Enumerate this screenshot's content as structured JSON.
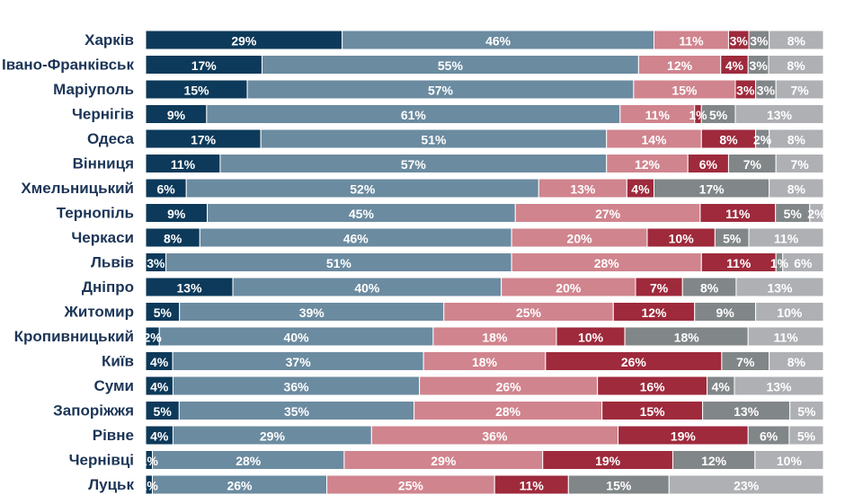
{
  "chart_data": {
    "type": "bar",
    "orientation": "horizontal",
    "stacked": true,
    "percent": true,
    "title": "",
    "xlabel": "",
    "ylabel": "",
    "xlim": [
      0,
      100
    ],
    "grid": false,
    "legend": "none",
    "value_suffix": "%",
    "categories": [
      "Харків",
      "Івано-Франківськ",
      "Маріуполь",
      "Чернігів",
      "Одеса",
      "Вінниця",
      "Хмельницький",
      "Тернопіль",
      "Черкаси",
      "Львів",
      "Дніпро",
      "Житомир",
      "Кропивницький",
      "Київ",
      "Суми",
      "Запоріжжя",
      "Рівне",
      "Чернівці",
      "Луцьк"
    ],
    "series": [
      {
        "name": "Segment 1",
        "color": "#0d3a5a",
        "values": [
          29,
          17,
          15,
          9,
          17,
          11,
          6,
          9,
          8,
          3,
          13,
          5,
          2,
          4,
          4,
          5,
          4,
          1,
          1
        ]
      },
      {
        "name": "Segment 2",
        "color": "#6b8ba0",
        "values": [
          46,
          55,
          57,
          61,
          51,
          57,
          52,
          45,
          46,
          51,
          40,
          39,
          40,
          37,
          36,
          35,
          29,
          28,
          26
        ]
      },
      {
        "name": "Segment 3",
        "color": "#d0848e",
        "values": [
          11,
          12,
          15,
          11,
          14,
          12,
          13,
          27,
          20,
          28,
          20,
          25,
          18,
          18,
          26,
          28,
          36,
          29,
          25
        ]
      },
      {
        "name": "Segment 4",
        "color": "#9e2a3c",
        "values": [
          3,
          4,
          3,
          1,
          8,
          6,
          4,
          11,
          10,
          11,
          7,
          12,
          10,
          26,
          16,
          15,
          19,
          19,
          11
        ]
      },
      {
        "name": "Segment 5",
        "color": "#818688",
        "values": [
          3,
          3,
          3,
          5,
          2,
          7,
          17,
          5,
          5,
          1,
          8,
          9,
          18,
          7,
          4,
          13,
          6,
          12,
          15
        ]
      },
      {
        "name": "Segment 6",
        "color": "#aeb0b4",
        "values": [
          8,
          8,
          7,
          13,
          8,
          7,
          8,
          2,
          11,
          6,
          13,
          10,
          11,
          8,
          13,
          5,
          5,
          10,
          23
        ]
      }
    ]
  }
}
